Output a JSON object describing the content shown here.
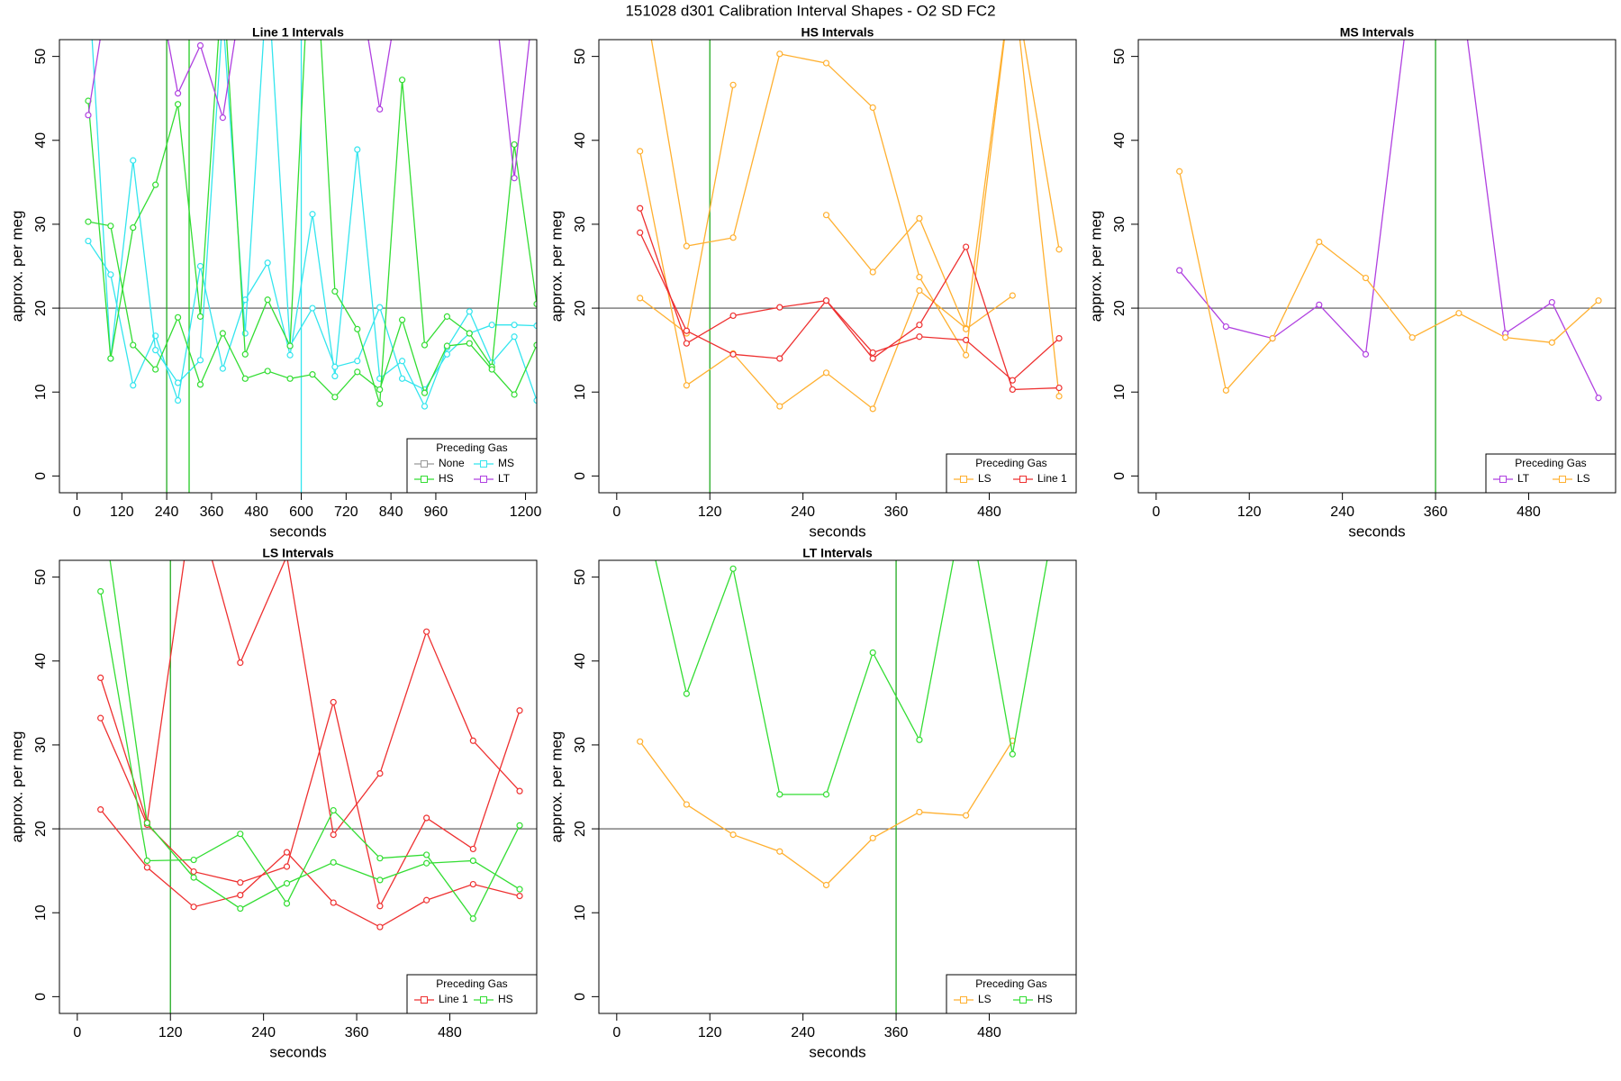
{
  "title": "151028   d301   Calibration Interval Shapes - O2 SD FC2",
  "chart_data": [
    {
      "type": "line",
      "title": "Line 1 Intervals",
      "xlabel": "seconds",
      "ylabel": "approx. per meg",
      "xlim": [
        -47,
        1230
      ],
      "ylim": [
        -2,
        52
      ],
      "xticks": [
        0,
        120,
        240,
        360,
        480,
        600,
        720,
        840,
        960,
        1200
      ],
      "yticks": [
        0,
        10,
        20,
        30,
        40,
        50
      ],
      "hline": 20,
      "vlines": [
        {
          "x": 240,
          "color": "#22aa22"
        },
        {
          "x": 300,
          "color": "#22cc22"
        },
        {
          "x": 600,
          "color": "#33e5ee"
        }
      ],
      "legend_title": "Preceding Gas",
      "legend_position": "bottomright",
      "x": [
        30,
        90,
        150,
        210,
        270,
        330,
        390,
        450,
        510,
        570,
        630,
        690,
        750,
        810,
        870,
        930,
        990,
        1050,
        1110,
        1170,
        1230
      ],
      "series": [
        {
          "name": "None",
          "color": "#999999",
          "lines": []
        },
        {
          "name": "MS",
          "color": "#33e5ee",
          "lines": [
            [
              28.0,
              24.0,
              10.8,
              16.7,
              9.0,
              25.0,
              12.8,
              21.0,
              25.4,
              14.4,
              31.2,
              11.9,
              38.9,
              11.6,
              13.7,
              8.3,
              15.3,
              19.6,
              13.5,
              16.6,
              9.0
            ],
            [
              60,
              14.0,
              37.6,
              15.0,
              11.1,
              13.8,
              55,
              17.0,
              60,
              15.5,
              20.0,
              13.0,
              13.7,
              20.1,
              11.6,
              10.3,
              14.5,
              17.0,
              18.0,
              18.0,
              17.9
            ]
          ]
        },
        {
          "name": "HS",
          "color": "#33dd33",
          "lines": [
            [
              44.7,
              14.0,
              29.6,
              34.7,
              44.3,
              19.0,
              60,
              14.5,
              21.0,
              15.5,
              70,
              22.0,
              17.5,
              8.6,
              47.2,
              15.6,
              19.0,
              17.0,
              13.0,
              39.5,
              20.5
            ],
            [
              30.3,
              29.8,
              15.6,
              12.7,
              18.9,
              10.9,
              17.0,
              11.6,
              12.5,
              11.6,
              12.1,
              9.4,
              12.4,
              10.3,
              18.6,
              9.9,
              15.5,
              15.8,
              12.7,
              9.7,
              15.6
            ]
          ]
        },
        {
          "name": "LT",
          "color": "#b040e0",
          "lines": [
            [
              43.0,
              60,
              60,
              60,
              45.6,
              51.3,
              42.7,
              60,
              60,
              60,
              60,
              60,
              60,
              43.7,
              60,
              60,
              60,
              60,
              60,
              35.5,
              60
            ]
          ]
        }
      ]
    },
    {
      "type": "line",
      "title": "HS Intervals",
      "xlabel": "seconds",
      "ylabel": "approx. per meg",
      "xlim": [
        -23,
        592
      ],
      "ylim": [
        -2,
        52
      ],
      "xticks": [
        0,
        120,
        240,
        360,
        480
      ],
      "yticks": [
        0,
        10,
        20,
        30,
        40,
        50
      ],
      "hline": 20,
      "vlines": [
        {
          "x": 120,
          "color": "#22aa22"
        }
      ],
      "legend_title": "Preceding Gas",
      "legend_position": "bottomright",
      "x": [
        30,
        90,
        150,
        210,
        270,
        330,
        390,
        450,
        510,
        570
      ],
      "series": [
        {
          "name": "LS",
          "color": "#ffb030",
          "lines": [
            [
              38.7,
              10.8,
              14.6,
              8.3,
              12.3,
              8.0,
              22.1,
              17.6,
              60,
              9.5
            ],
            [
              60,
              27.4,
              28.4,
              50.3,
              49.2,
              43.9,
              23.7,
              14.4,
              60,
              27.0
            ],
            [
              21.2,
              17.0,
              46.6,
              null,
              31.1,
              24.3,
              30.7,
              17.5,
              21.5,
              null
            ]
          ]
        },
        {
          "name": "Line 1",
          "color": "#ee3030",
          "lines": [
            [
              31.9,
              15.8,
              19.1,
              20.1,
              20.9,
              14.0,
              18.0,
              27.3,
              10.3,
              10.5
            ],
            [
              29.0,
              17.3,
              14.5,
              14.0,
              20.9,
              14.7,
              16.6,
              16.2,
              11.4,
              16.4
            ]
          ]
        }
      ]
    },
    {
      "type": "line",
      "title": "MS Intervals",
      "xlabel": "seconds",
      "ylabel": "approx. per meg",
      "xlim": [
        -23,
        592
      ],
      "ylim": [
        -2,
        52
      ],
      "xticks": [
        0,
        120,
        240,
        360,
        480
      ],
      "yticks": [
        0,
        10,
        20,
        30,
        40,
        50
      ],
      "hline": 20,
      "vlines": [
        {
          "x": 360,
          "color": "#22aa22"
        }
      ],
      "legend_title": "Preceding Gas",
      "legend_position": "bottomright",
      "x": [
        30,
        90,
        150,
        210,
        270,
        330,
        390,
        450,
        510,
        570
      ],
      "series": [
        {
          "name": "LT",
          "color": "#b040e0",
          "lines": [
            [
              24.5,
              17.8,
              16.4,
              20.4,
              14.5,
              60,
              60,
              17.0,
              20.7,
              9.3
            ]
          ]
        },
        {
          "name": "LS",
          "color": "#ffb030",
          "lines": [
            [
              36.3,
              10.2,
              16.4,
              27.9,
              23.6,
              16.5,
              19.4,
              16.5,
              15.9,
              20.9
            ]
          ]
        }
      ]
    },
    {
      "type": "line",
      "title": "LS Intervals",
      "xlabel": "seconds",
      "ylabel": "approx. per meg",
      "xlim": [
        -23,
        592
      ],
      "ylim": [
        -2,
        52
      ],
      "xticks": [
        0,
        120,
        240,
        360,
        480
      ],
      "yticks": [
        0,
        10,
        20,
        30,
        40,
        50
      ],
      "hline": 20,
      "vlines": [
        {
          "x": 120,
          "color": "#22aa22"
        }
      ],
      "legend_title": "Preceding Gas",
      "legend_position": "bottomright",
      "x": [
        30,
        90,
        150,
        210,
        270,
        330,
        390,
        450,
        510,
        570
      ],
      "series": [
        {
          "name": "Line 1",
          "color": "#ee3030",
          "lines": [
            [
              38.0,
              20.8,
              60,
              39.8,
              52.5,
              19.3,
              26.6,
              43.5,
              30.5,
              24.5
            ],
            [
              33.2,
              20.5,
              14.9,
              13.6,
              15.5,
              35.1,
              10.8,
              21.3,
              17.6,
              34.1
            ],
            [
              22.3,
              15.4,
              10.7,
              12.1,
              17.2,
              11.2,
              8.3,
              11.5,
              13.4,
              12.0
            ]
          ]
        },
        {
          "name": "HS",
          "color": "#33dd33",
          "lines": [
            [
              48.3,
              16.2,
              16.3,
              19.4,
              11.1,
              22.2,
              16.5,
              16.9,
              9.3,
              20.4
            ],
            [
              60,
              20.7,
              14.2,
              10.5,
              13.5,
              16.0,
              13.9,
              15.9,
              16.2,
              12.8
            ]
          ]
        }
      ]
    },
    {
      "type": "line",
      "title": "LT Intervals",
      "xlabel": "seconds",
      "ylabel": "approx. per meg",
      "xlim": [
        -23,
        592
      ],
      "ylim": [
        -2,
        52
      ],
      "xticks": [
        0,
        120,
        240,
        360,
        480
      ],
      "yticks": [
        0,
        10,
        20,
        30,
        40,
        50
      ],
      "hline": 20,
      "vlines": [
        {
          "x": 360,
          "color": "#22aa22"
        }
      ],
      "legend_title": "Preceding Gas",
      "legend_position": "bottomright",
      "x": [
        30,
        90,
        150,
        210,
        270,
        330,
        390,
        450,
        510,
        570
      ],
      "series": [
        {
          "name": "LS",
          "color": "#ffb030",
          "lines": [
            [
              30.4,
              22.9,
              19.3,
              17.3,
              13.3,
              18.9,
              22.0,
              21.6,
              30.5,
              null
            ]
          ]
        },
        {
          "name": "HS",
          "color": "#33dd33",
          "lines": [
            [
              60,
              36.1,
              51.0,
              24.1,
              24.1,
              41.0,
              30.6,
              60,
              28.9,
              60
            ]
          ]
        }
      ]
    }
  ]
}
